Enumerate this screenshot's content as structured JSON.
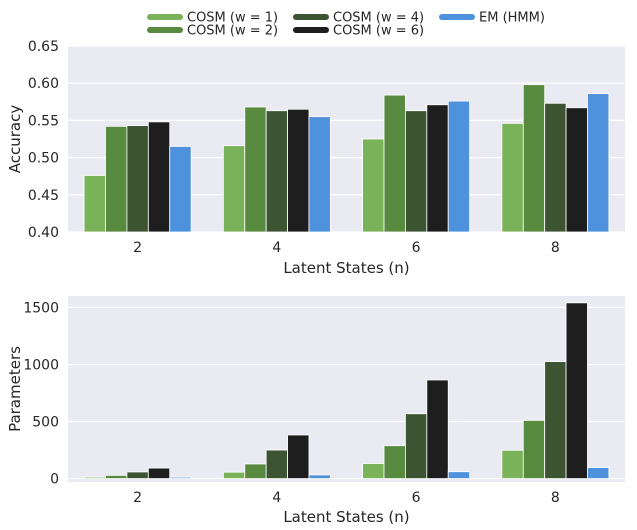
{
  "colors": {
    "panel_bg": "#EAEAF2",
    "grid": "#FFFFFF",
    "text": "#262626",
    "cosm_w1": "#7AB259",
    "cosm_w2": "#588A40",
    "cosm_w4": "#3D5433",
    "cosm_w6": "#1E1E1E",
    "em_hmm": "#4E92DE"
  },
  "legend": {
    "entries": [
      {
        "label": "COSM (w = 1)",
        "color_key": "cosm_w1"
      },
      {
        "label": "COSM (w = 2)",
        "color_key": "cosm_w2"
      },
      {
        "label": "COSM (w = 4)",
        "color_key": "cosm_w4"
      },
      {
        "label": "COSM (w = 6)",
        "color_key": "cosm_w6"
      },
      {
        "label": "EM (HMM)",
        "color_key": "em_hmm"
      }
    ]
  },
  "chart_data": [
    {
      "type": "bar",
      "title": "",
      "xlabel": "Latent States (n)",
      "ylabel": "Accuracy",
      "categories": [
        "2",
        "4",
        "6",
        "8"
      ],
      "ylim": [
        0.4,
        0.65
      ],
      "yticks": [
        0.4,
        0.45,
        0.5,
        0.55,
        0.6,
        0.65
      ],
      "ytick_labels": [
        "0.40",
        "0.45",
        "0.50",
        "0.55",
        "0.60",
        "0.65"
      ],
      "series": [
        {
          "name": "COSM (w = 1)",
          "values": [
            0.476,
            0.516,
            0.525,
            0.546
          ]
        },
        {
          "name": "COSM (w = 2)",
          "values": [
            0.542,
            0.568,
            0.584,
            0.598
          ]
        },
        {
          "name": "COSM (w = 4)",
          "values": [
            0.543,
            0.563,
            0.563,
            0.573
          ]
        },
        {
          "name": "COSM (w = 6)",
          "values": [
            0.548,
            0.565,
            0.571,
            0.567
          ]
        },
        {
          "name": "EM (HMM)",
          "values": [
            0.515,
            0.555,
            0.576,
            0.586
          ]
        }
      ]
    },
    {
      "type": "bar",
      "title": "",
      "xlabel": "Latent States (n)",
      "ylabel": "Parameters",
      "categories": [
        "2",
        "4",
        "6",
        "8"
      ],
      "ylim": [
        -30,
        1600
      ],
      "yticks": [
        0,
        500,
        1000,
        1500
      ],
      "ytick_labels": [
        "0",
        "500",
        "1000",
        "1500"
      ],
      "series": [
        {
          "name": "COSM (w = 1)",
          "values": [
            12,
            56,
            132,
            248
          ]
        },
        {
          "name": "COSM (w = 2)",
          "values": [
            28,
            128,
            288,
            510
          ]
        },
        {
          "name": "COSM (w = 4)",
          "values": [
            58,
            250,
            568,
            1025
          ]
        },
        {
          "name": "COSM (w = 6)",
          "values": [
            92,
            382,
            864,
            1540
          ]
        },
        {
          "name": "EM (HMM)",
          "values": [
            12,
            32,
            60,
            96
          ]
        }
      ]
    }
  ]
}
